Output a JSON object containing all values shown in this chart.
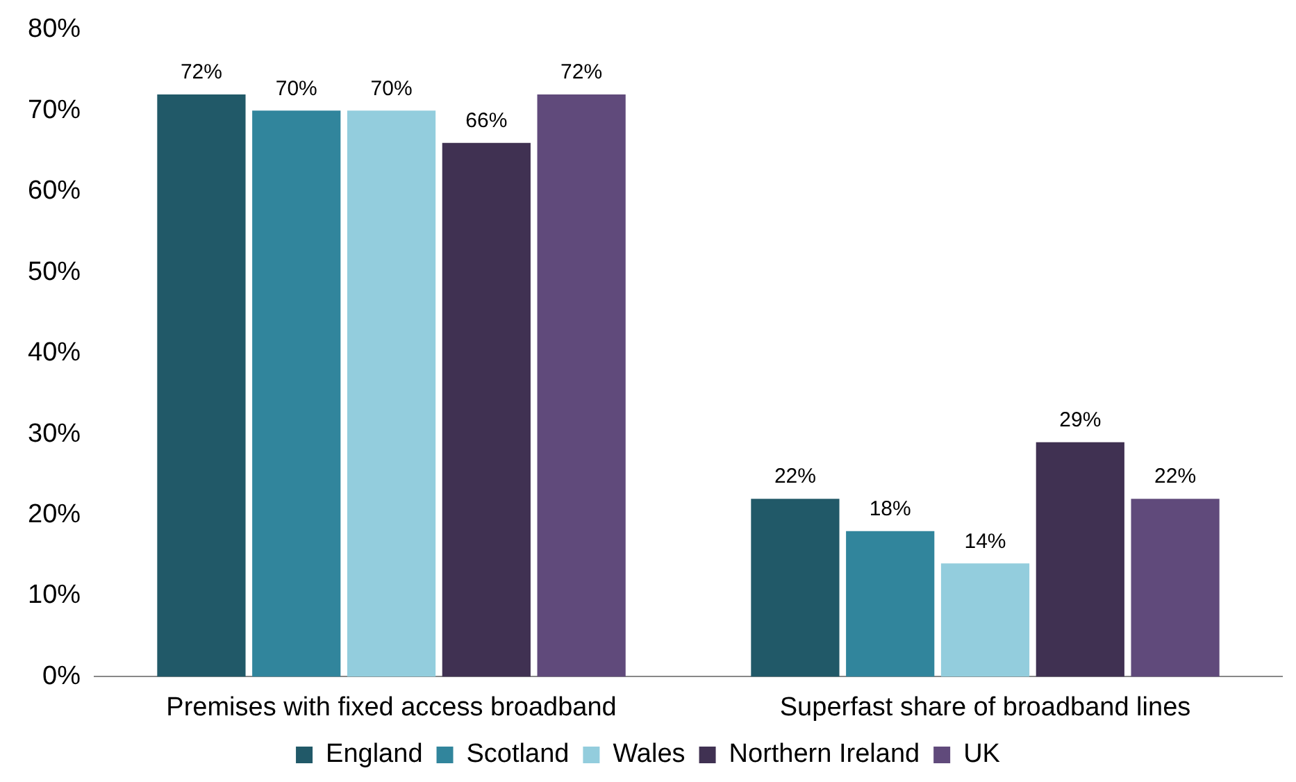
{
  "chart_data": {
    "type": "bar",
    "categories": [
      "Premises with fixed access broadband",
      "Superfast share of broadband lines"
    ],
    "series": [
      {
        "name": "England",
        "color": "#215968",
        "values": [
          72,
          22
        ],
        "value_labels": [
          "72%",
          "22%"
        ]
      },
      {
        "name": "Scotland",
        "color": "#31859c",
        "values": [
          70,
          18
        ],
        "value_labels": [
          "70%",
          "18%"
        ]
      },
      {
        "name": "Wales",
        "color": "#93cddd",
        "values": [
          70,
          14
        ],
        "value_labels": [
          "70%",
          "14%"
        ]
      },
      {
        "name": "Northern Ireland",
        "color": "#403152",
        "values": [
          66,
          29
        ],
        "value_labels": [
          "66%",
          "29%"
        ]
      },
      {
        "name": "UK",
        "color": "#604a7b",
        "values": [
          72,
          22
        ],
        "value_labels": [
          "72%",
          "22%"
        ]
      }
    ],
    "ylim": [
      0,
      80
    ],
    "yticks": [
      {
        "value": 0,
        "label": "0%"
      },
      {
        "value": 10,
        "label": "10%"
      },
      {
        "value": 20,
        "label": "20%"
      },
      {
        "value": 30,
        "label": "30%"
      },
      {
        "value": 40,
        "label": "40%"
      },
      {
        "value": 50,
        "label": "50%"
      },
      {
        "value": 60,
        "label": "60%"
      },
      {
        "value": 70,
        "label": "70%"
      },
      {
        "value": 80,
        "label": "80%"
      }
    ],
    "grid": false,
    "legend": "bottom"
  }
}
